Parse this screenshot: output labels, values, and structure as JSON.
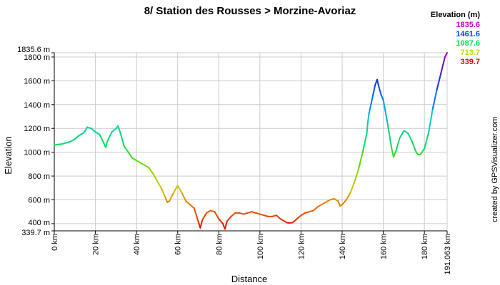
{
  "chart_data": {
    "type": "line",
    "title": "8/ Station des Rousses > Morzine-Avoriaz",
    "xlabel": "Distance",
    "ylabel": "Elevation",
    "xlim": [
      0,
      191.063
    ],
    "ylim": [
      339.7,
      1835.6
    ],
    "grid": true,
    "x_ticks": [
      0,
      20,
      40,
      60,
      80,
      100,
      120,
      140,
      160,
      180,
      191.063
    ],
    "x_tick_labels": [
      "0 km",
      "20 km",
      "40 km",
      "60 km",
      "80 km",
      "100 km",
      "120 km",
      "140 km",
      "160 km",
      "180 km",
      "191.063 km"
    ],
    "y_ticks": [
      339.7,
      400,
      600,
      800,
      1000,
      1200,
      1400,
      1600,
      1800,
      1835.6
    ],
    "y_tick_labels": [
      "339.7 m",
      "400 m",
      "600 m",
      "800 m",
      "1000 m",
      "1200 m",
      "1400 m",
      "1600 m",
      "1800 m",
      "1835.6 m"
    ],
    "legend": {
      "title": "Elevation (m)",
      "placement": "top-right",
      "entries": [
        {
          "label": "1835.6",
          "color": "#cc00cc"
        },
        {
          "label": "1461.6",
          "color": "#0044ff"
        },
        {
          "label": "1087.6",
          "color": "#00dd55"
        },
        {
          "label": "713.7",
          "color": "#bbdd00"
        },
        {
          "label": "339.7",
          "color": "#ee0000"
        }
      ]
    },
    "color_stops": [
      {
        "elevation": 339.7,
        "color": "#dd0000"
      },
      {
        "elevation": 526.7,
        "color": "#ee6600"
      },
      {
        "elevation": 713.7,
        "color": "#cccc00"
      },
      {
        "elevation": 900.6,
        "color": "#66dd00"
      },
      {
        "elevation": 1087.6,
        "color": "#00dd66"
      },
      {
        "elevation": 1274.6,
        "color": "#00cccc"
      },
      {
        "elevation": 1461.6,
        "color": "#0066ff"
      },
      {
        "elevation": 1648.6,
        "color": "#2222bb"
      },
      {
        "elevation": 1835.6,
        "color": "#aa00cc"
      }
    ],
    "x": [
      0,
      2,
      4,
      6,
      8,
      10,
      12,
      14,
      15,
      16,
      18,
      20,
      22,
      24,
      25,
      26,
      28,
      30,
      31,
      32,
      34,
      36,
      38,
      40,
      42,
      44,
      46,
      48,
      50,
      52,
      54,
      55,
      56,
      58,
      60,
      62,
      64,
      66,
      68,
      70,
      71,
      72,
      74,
      76,
      78,
      80,
      82,
      83,
      84,
      86,
      88,
      90,
      92,
      94,
      96,
      98,
      100,
      102,
      104,
      106,
      108,
      110,
      112,
      113,
      114,
      116,
      118,
      120,
      122,
      124,
      126,
      128,
      130,
      132,
      134,
      136,
      138,
      139,
      140,
      142,
      144,
      146,
      148,
      150,
      152,
      152.5,
      153,
      154,
      155,
      156,
      157,
      158,
      159,
      160,
      162,
      164,
      165,
      166,
      168,
      169,
      170,
      172,
      174,
      176,
      177,
      178,
      180,
      182,
      184,
      186,
      188,
      190,
      191.063
    ],
    "values": [
      1060,
      1065,
      1070,
      1080,
      1090,
      1110,
      1140,
      1160,
      1180,
      1210,
      1200,
      1170,
      1150,
      1080,
      1040,
      1100,
      1170,
      1200,
      1220,
      1170,
      1050,
      1000,
      950,
      930,
      910,
      890,
      870,
      820,
      760,
      700,
      620,
      580,
      590,
      660,
      720,
      660,
      590,
      560,
      530,
      420,
      365,
      430,
      490,
      510,
      500,
      440,
      400,
      355,
      420,
      460,
      490,
      490,
      480,
      490,
      500,
      490,
      480,
      470,
      460,
      460,
      470,
      440,
      420,
      410,
      405,
      410,
      440,
      470,
      490,
      500,
      510,
      540,
      560,
      580,
      600,
      610,
      590,
      550,
      560,
      600,
      660,
      750,
      860,
      1000,
      1160,
      1250,
      1320,
      1400,
      1480,
      1560,
      1610,
      1540,
      1480,
      1440,
      1250,
      1040,
      960,
      1000,
      1120,
      1150,
      1180,
      1160,
      1090,
      1000,
      980,
      980,
      1030,
      1160,
      1360,
      1520,
      1660,
      1800,
      1835
    ]
  },
  "credit": "created by GPSVisualizer.com"
}
